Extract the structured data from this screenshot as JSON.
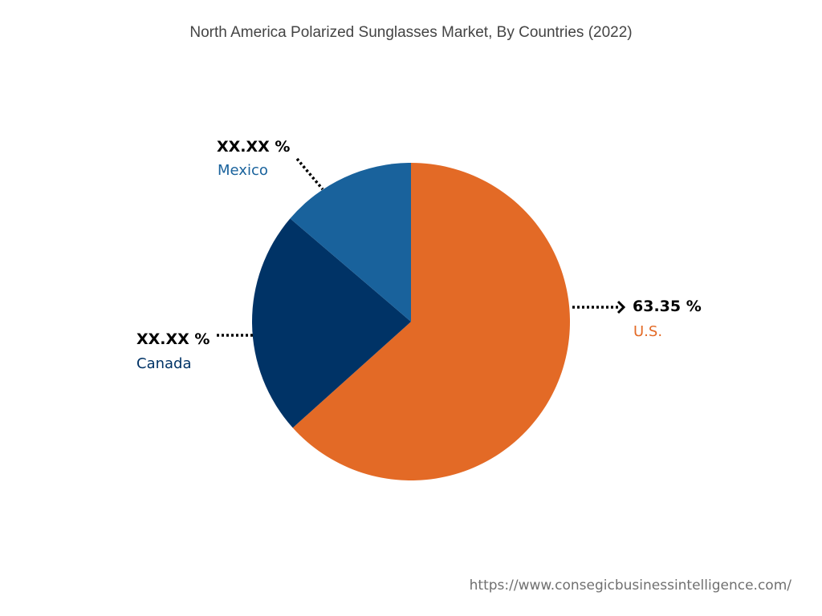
{
  "colors": {
    "us": "#E36A26",
    "canada": "#003366",
    "mexico": "#19629C",
    "leader": "#000000"
  },
  "chart_data": {
    "type": "pie",
    "title": "North America Polarized Sunglasses Market, By Countries (2022)",
    "slices": [
      {
        "key": "us",
        "label": "U.S.",
        "value": 63.35,
        "display_value": "63.35 %",
        "color": "#E36A26"
      },
      {
        "key": "canada",
        "label": "Canada",
        "value": 22.9,
        "display_value": "XX.XX %",
        "color": "#003366"
      },
      {
        "key": "mexico",
        "label": "Mexico",
        "value": 13.75,
        "display_value": "XX.XX %",
        "color": "#19629C"
      }
    ]
  },
  "source_url": "https://www.consegicbusinessintelligence.com/"
}
